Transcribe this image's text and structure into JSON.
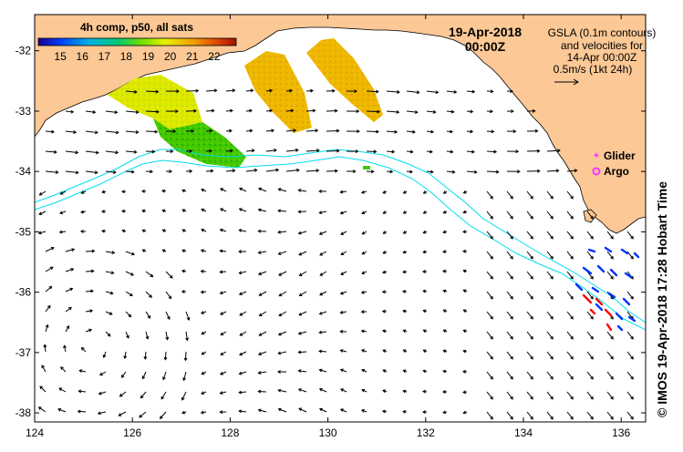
{
  "colorbar": {
    "title": "4h comp, p50, all sats",
    "ticks": [
      15,
      16,
      17,
      18,
      19,
      20,
      21,
      22
    ],
    "range": [
      14,
      23
    ]
  },
  "date": {
    "line1": "19-Apr-2018",
    "line2": "00:00Z"
  },
  "info": {
    "lines": [
      "GSLA (0.1m contours)",
      "and velocities for",
      "14-Apr 00:00Z",
      "0.5m/s (1kt 24h)"
    ]
  },
  "legend": {
    "glider": {
      "label": "Glider",
      "color": "#ff33ff"
    },
    "argo": {
      "label": "Argo",
      "color": "#ff33ff"
    }
  },
  "credit": "© IMOS 19-Apr-2018 17:28 Hobart Time",
  "axes": {
    "lon_ticks": [
      124,
      126,
      128,
      130,
      132,
      134,
      136
    ],
    "lat_ticks": [
      -32,
      -33,
      -34,
      -35,
      -36,
      -37,
      -38
    ],
    "lon_range": [
      124,
      136.5
    ],
    "lat_range": [
      -38.15,
      -31.4
    ]
  },
  "colors": {
    "land": "#fbc896",
    "isobath": "#00ddee",
    "ocean": "#ffffff"
  }
}
